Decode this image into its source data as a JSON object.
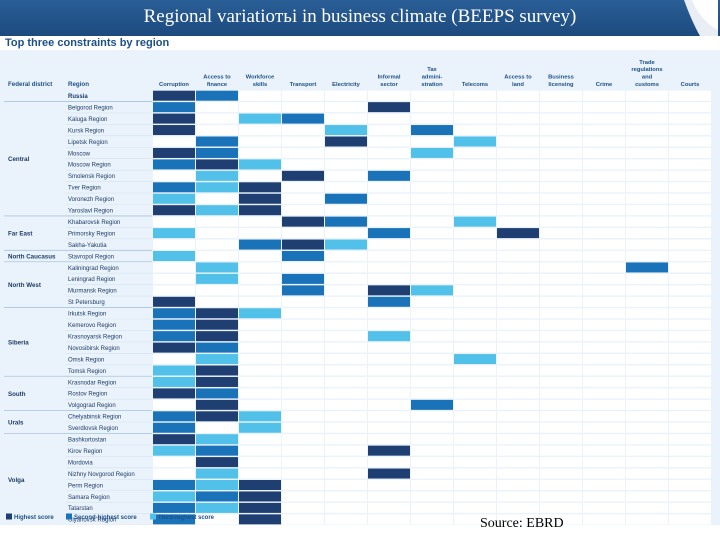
{
  "title": "Regional variatioтьі in business climate (BEEPS survey)",
  "subtitle": "Top three constraints by region",
  "source": "Source: EBRD",
  "colors": {
    "highest": "#1f3f73",
    "second": "#1a73b8",
    "third": "#52c1ea",
    "background": "#eaf3fb",
    "banner": "#1c4a7e"
  },
  "chart_data": {
    "type": "heatmap",
    "title": "Top three constraints by region",
    "header_labels": {
      "district": "Federal district",
      "region": "Region"
    },
    "columns": [
      "Corruption",
      "Access to finance",
      "Workforce skills",
      "Transport",
      "Electricity",
      "Informal sector",
      "Tax admini-stration",
      "Telecoms",
      "Access to land",
      "Business licensing",
      "Crime",
      "Trade regulations and customs",
      "Courts"
    ],
    "column_lines": [
      [
        "Corruption"
      ],
      [
        "Access to",
        "finance"
      ],
      [
        "Workforce",
        "skills"
      ],
      [
        "Transport"
      ],
      [
        "Electricity"
      ],
      [
        "Informal",
        "sector"
      ],
      [
        "Tax",
        "admini-",
        "stration"
      ],
      [
        "Telecoms"
      ],
      [
        "Access to",
        "land"
      ],
      [
        "Business",
        "licensing"
      ],
      [
        "Crime"
      ],
      [
        "Trade",
        "regulations",
        "and",
        "customs"
      ],
      [
        "Courts"
      ]
    ],
    "score_scale": {
      "3": "Highest score",
      "2": "Second-highest score",
      "1": "Third-highest score"
    },
    "districts": [
      {
        "name": "Central",
        "regions": [
          "Belgorod Region",
          "Kaluga Region",
          "Kursk Region",
          "Lipetsk Region",
          "Moscow",
          "Moscow Region",
          "Smolensk Region",
          "Tver Region",
          "Voronezh Region",
          "Yaroslavl Region"
        ]
      },
      {
        "name": "Far East",
        "regions": [
          "Khabarovsk Region",
          "Primorsky Region",
          "Sakha-Yakutia"
        ]
      },
      {
        "name": "North Caucasus",
        "regions": [
          "Stavropol Region"
        ]
      },
      {
        "name": "North West",
        "regions": [
          "Kaliningrad Region",
          "Leningrad Region",
          "Murmansk Region",
          "St Petersburg"
        ]
      },
      {
        "name": "Siberia",
        "regions": [
          "Irkutsk Region",
          "Kemerovo Region",
          "Krasnoyarsk Region",
          "Novosibirsk Region",
          "Omsk Region",
          "Tomsk Region"
        ]
      },
      {
        "name": "South",
        "regions": [
          "Krasnodar Region",
          "Rostov Region",
          "Volgograd Region"
        ]
      },
      {
        "name": "Urals",
        "regions": [
          "Chelyabinsk Region",
          "Sverdlovsk Region"
        ]
      },
      {
        "name": "Volga",
        "regions": [
          "Bashkortostan",
          "Kirov Region",
          "Mordovia",
          "Nizhny Novgorod Region",
          "Perm Region",
          "Samara Region",
          "Tatarstan",
          "Ulyanovsk Region"
        ]
      }
    ],
    "rows": [
      {
        "district": "",
        "region": "Russia",
        "scores": [
          3,
          2,
          0,
          0,
          0,
          0,
          0,
          0,
          0,
          0,
          0,
          0,
          0
        ]
      },
      {
        "district": "Central",
        "region": "Belgorod Region",
        "scores": [
          2,
          0,
          0,
          0,
          0,
          3,
          0,
          0,
          0,
          0,
          0,
          0,
          0
        ]
      },
      {
        "district": "Central",
        "region": "Kaluga Region",
        "scores": [
          3,
          0,
          1,
          2,
          0,
          0,
          0,
          0,
          0,
          0,
          0,
          0,
          0
        ]
      },
      {
        "district": "Central",
        "region": "Kursk Region",
        "scores": [
          3,
          0,
          0,
          0,
          1,
          0,
          2,
          0,
          0,
          0,
          0,
          0,
          0
        ]
      },
      {
        "district": "Central",
        "region": "Lipetsk Region",
        "scores": [
          0,
          2,
          0,
          0,
          3,
          0,
          0,
          1,
          0,
          0,
          0,
          0,
          0
        ]
      },
      {
        "district": "Central",
        "region": "Moscow",
        "scores": [
          3,
          2,
          0,
          0,
          0,
          0,
          1,
          0,
          0,
          0,
          0,
          0,
          0
        ]
      },
      {
        "district": "Central",
        "region": "Moscow Region",
        "scores": [
          2,
          3,
          1,
          0,
          0,
          0,
          0,
          0,
          0,
          0,
          0,
          0,
          0
        ]
      },
      {
        "district": "Central",
        "region": "Smolensk Region",
        "scores": [
          0,
          1,
          0,
          3,
          0,
          2,
          0,
          0,
          0,
          0,
          0,
          0,
          0
        ]
      },
      {
        "district": "Central",
        "region": "Tver Region",
        "scores": [
          2,
          1,
          3,
          0,
          0,
          0,
          0,
          0,
          0,
          0,
          0,
          0,
          0
        ]
      },
      {
        "district": "Central",
        "region": "Voronezh Region",
        "scores": [
          1,
          0,
          3,
          0,
          2,
          0,
          0,
          0,
          0,
          0,
          0,
          0,
          0
        ]
      },
      {
        "district": "Central",
        "region": "Yaroslavl Region",
        "scores": [
          3,
          1,
          3,
          0,
          0,
          0,
          0,
          0,
          0,
          0,
          0,
          0,
          0
        ]
      },
      {
        "district": "Far East",
        "region": "Khabarovsk Region",
        "scores": [
          0,
          0,
          0,
          3,
          2,
          0,
          0,
          1,
          0,
          0,
          0,
          0,
          0
        ]
      },
      {
        "district": "Far East",
        "region": "Primorsky Region",
        "scores": [
          1,
          0,
          0,
          0,
          0,
          2,
          0,
          0,
          3,
          0,
          0,
          0,
          0
        ]
      },
      {
        "district": "Far East",
        "region": "Sakha-Yakutia",
        "scores": [
          0,
          0,
          2,
          3,
          1,
          0,
          0,
          0,
          0,
          0,
          0,
          0,
          0
        ]
      },
      {
        "district": "North Caucasus",
        "region": "Stavropol Region",
        "scores": [
          1,
          0,
          0,
          2,
          0,
          0,
          0,
          0,
          0,
          0,
          0,
          0,
          0
        ]
      },
      {
        "district": "North West",
        "region": "Kaliningrad Region",
        "scores": [
          0,
          1,
          0,
          0,
          0,
          0,
          0,
          0,
          0,
          0,
          0,
          2,
          0
        ]
      },
      {
        "district": "North West",
        "region": "Leningrad Region",
        "scores": [
          0,
          1,
          0,
          2,
          0,
          0,
          0,
          0,
          0,
          0,
          0,
          0,
          0
        ]
      },
      {
        "district": "North West",
        "region": "Murmansk Region",
        "scores": [
          0,
          0,
          0,
          2,
          0,
          3,
          1,
          0,
          0,
          0,
          0,
          0,
          0
        ]
      },
      {
        "district": "North West",
        "region": "St Petersburg",
        "scores": [
          3,
          0,
          0,
          0,
          0,
          2,
          0,
          0,
          0,
          0,
          0,
          0,
          0
        ]
      },
      {
        "district": "Siberia",
        "region": "Irkutsk Region",
        "scores": [
          2,
          3,
          1,
          0,
          0,
          0,
          0,
          0,
          0,
          0,
          0,
          0,
          0
        ]
      },
      {
        "district": "Siberia",
        "region": "Kemerovo Region",
        "scores": [
          2,
          3,
          0,
          0,
          0,
          0,
          0,
          0,
          0,
          0,
          0,
          0,
          0
        ]
      },
      {
        "district": "Siberia",
        "region": "Krasnoyarsk Region",
        "scores": [
          2,
          3,
          0,
          0,
          0,
          1,
          0,
          0,
          0,
          0,
          0,
          0,
          0
        ]
      },
      {
        "district": "Siberia",
        "region": "Novosibirsk Region",
        "scores": [
          3,
          2,
          0,
          0,
          0,
          0,
          0,
          0,
          0,
          0,
          0,
          0,
          0
        ]
      },
      {
        "district": "Siberia",
        "region": "Omsk Region",
        "scores": [
          0,
          1,
          0,
          0,
          0,
          0,
          0,
          1,
          0,
          0,
          0,
          0,
          0
        ]
      },
      {
        "district": "Siberia",
        "region": "Tomsk Region",
        "scores": [
          1,
          3,
          0,
          0,
          0,
          0,
          0,
          0,
          0,
          0,
          0,
          0,
          0
        ]
      },
      {
        "district": "South",
        "region": "Krasnodar Region",
        "scores": [
          1,
          3,
          0,
          0,
          0,
          0,
          0,
          0,
          0,
          0,
          0,
          0,
          0
        ]
      },
      {
        "district": "South",
        "region": "Rostov Region",
        "scores": [
          3,
          2,
          0,
          0,
          0,
          0,
          0,
          0,
          0,
          0,
          0,
          0,
          0
        ]
      },
      {
        "district": "South",
        "region": "Volgograd Region",
        "scores": [
          0,
          3,
          0,
          0,
          0,
          0,
          2,
          0,
          0,
          0,
          0,
          0,
          0
        ]
      },
      {
        "district": "Urals",
        "region": "Chelyabinsk Region",
        "scores": [
          2,
          3,
          1,
          0,
          0,
          0,
          0,
          0,
          0,
          0,
          0,
          0,
          0
        ]
      },
      {
        "district": "Urals",
        "region": "Sverdlovsk Region",
        "scores": [
          2,
          0,
          1,
          0,
          0,
          0,
          0,
          0,
          0,
          0,
          0,
          0,
          0
        ]
      },
      {
        "district": "Volga",
        "region": "Bashkortostan",
        "scores": [
          3,
          1,
          0,
          0,
          0,
          0,
          0,
          0,
          0,
          0,
          0,
          0,
          0
        ]
      },
      {
        "district": "Volga",
        "region": "Kirov Region",
        "scores": [
          1,
          2,
          0,
          0,
          0,
          3,
          0,
          0,
          0,
          0,
          0,
          0,
          0
        ]
      },
      {
        "district": "Volga",
        "region": "Mordovia",
        "scores": [
          0,
          3,
          0,
          0,
          0,
          0,
          0,
          0,
          0,
          0,
          0,
          0,
          0
        ]
      },
      {
        "district": "Volga",
        "region": "Nizhny Novgorod Region",
        "scores": [
          0,
          1,
          0,
          0,
          0,
          3,
          0,
          0,
          0,
          0,
          0,
          0,
          0
        ]
      },
      {
        "district": "Volga",
        "region": "Perm Region",
        "scores": [
          2,
          1,
          3,
          0,
          0,
          0,
          0,
          0,
          0,
          0,
          0,
          0,
          0
        ]
      },
      {
        "district": "Volga",
        "region": "Samara Region",
        "scores": [
          1,
          2,
          3,
          0,
          0,
          0,
          0,
          0,
          0,
          0,
          0,
          0,
          0
        ]
      },
      {
        "district": "Volga",
        "region": "Tatarstan",
        "scores": [
          2,
          1,
          3,
          0,
          0,
          0,
          0,
          0,
          0,
          0,
          0,
          0,
          0
        ]
      },
      {
        "district": "Volga",
        "region": "Ulyanovsk Region",
        "scores": [
          2,
          0,
          3,
          0,
          0,
          0,
          0,
          0,
          0,
          0,
          0,
          0,
          0
        ]
      }
    ],
    "legend": {
      "position": "bottom-left",
      "entries": [
        "Highest score",
        "Second-highest score",
        "Third-highest score"
      ]
    },
    "grid": true
  }
}
